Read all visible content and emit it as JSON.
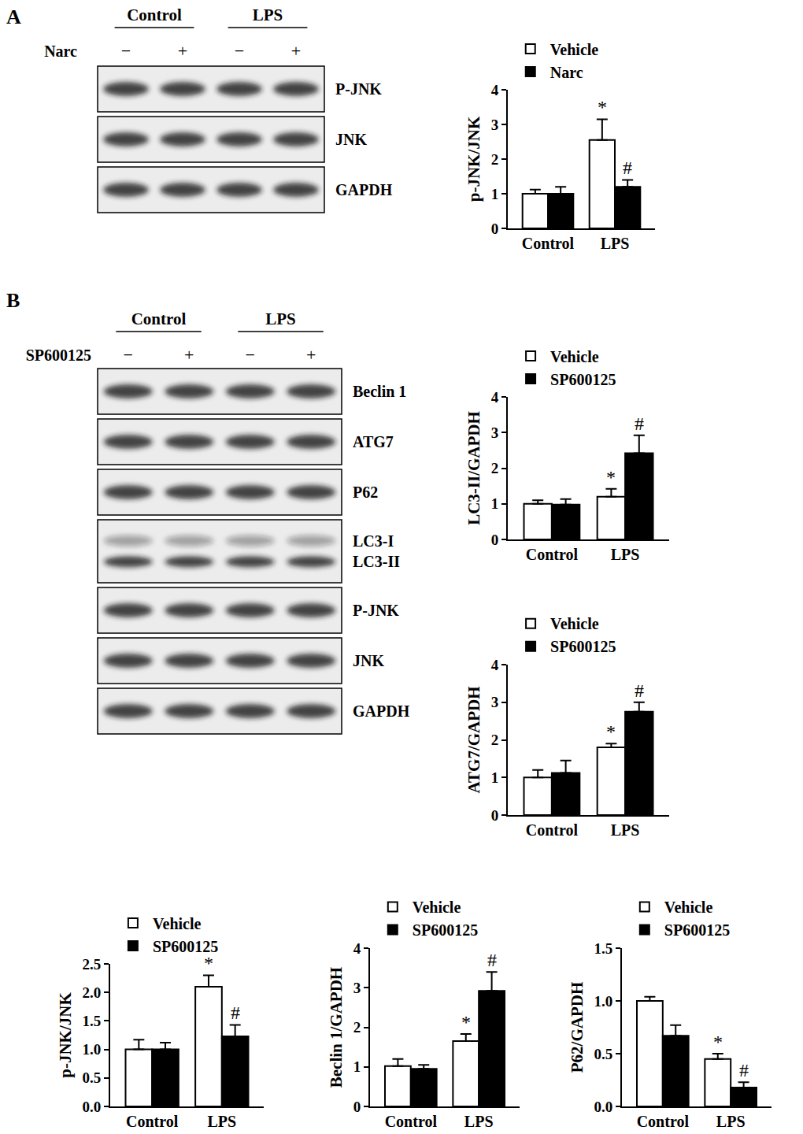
{
  "blots": [
    {
      "panel": "A",
      "groups": [
        "Control",
        "LPS"
      ],
      "treatment": "Narc",
      "lanes": [
        "−",
        "+",
        "−",
        "+"
      ],
      "rows": [
        {
          "labels": [
            "P-JNK"
          ]
        },
        {
          "labels": [
            "JNK"
          ]
        },
        {
          "labels": [
            "GAPDH"
          ]
        }
      ]
    },
    {
      "panel": "B",
      "groups": [
        "Control",
        "LPS"
      ],
      "treatment": "SP600125",
      "lanes": [
        "−",
        "+",
        "−",
        "+"
      ],
      "rows": [
        {
          "labels": [
            "Beclin 1"
          ]
        },
        {
          "labels": [
            "ATG7"
          ]
        },
        {
          "labels": [
            "P62"
          ]
        },
        {
          "labels": [
            "LC3-I",
            "LC3-II"
          ]
        },
        {
          "labels": [
            "P-JNK"
          ]
        },
        {
          "labels": [
            "JNK"
          ]
        },
        {
          "labels": [
            "GAPDH"
          ]
        }
      ]
    }
  ],
  "chart_data": [
    {
      "type": "bar",
      "ylabel": "p-JNK/JNK",
      "categories": [
        "Control",
        "LPS"
      ],
      "series": [
        {
          "name": "Vehicle",
          "color": "#ffffff",
          "values": [
            1.0,
            2.55
          ],
          "errors": [
            0.12,
            0.6
          ]
        },
        {
          "name": "Narc",
          "color": "#000000",
          "values": [
            1.0,
            1.2
          ],
          "errors": [
            0.2,
            0.2
          ]
        }
      ],
      "ylim": [
        0,
        4
      ],
      "yticks": [
        0,
        1,
        2,
        3,
        4
      ],
      "marks": [
        {
          "text": "*",
          "category": "LPS",
          "series": "Vehicle"
        },
        {
          "text": "#",
          "category": "LPS",
          "series": "Narc"
        }
      ]
    },
    {
      "type": "bar",
      "ylabel": "LC3-II/GAPDH",
      "categories": [
        "Control",
        "LPS"
      ],
      "series": [
        {
          "name": "Vehicle",
          "color": "#ffffff",
          "values": [
            1.0,
            1.2
          ],
          "errors": [
            0.1,
            0.22
          ]
        },
        {
          "name": "SP600125",
          "color": "#000000",
          "values": [
            0.98,
            2.42
          ],
          "errors": [
            0.15,
            0.5
          ]
        }
      ],
      "ylim": [
        0,
        4
      ],
      "yticks": [
        0,
        1,
        2,
        3,
        4
      ],
      "marks": [
        {
          "text": "*",
          "category": "LPS",
          "series": "Vehicle"
        },
        {
          "text": "#",
          "category": "LPS",
          "series": "SP600125"
        }
      ]
    },
    {
      "type": "bar",
      "ylabel": "ATG7/GAPDH",
      "categories": [
        "Control",
        "LPS"
      ],
      "series": [
        {
          "name": "Vehicle",
          "color": "#ffffff",
          "values": [
            1.0,
            1.8
          ],
          "errors": [
            0.2,
            0.1
          ]
        },
        {
          "name": "SP600125",
          "color": "#000000",
          "values": [
            1.12,
            2.75
          ],
          "errors": [
            0.33,
            0.25
          ]
        }
      ],
      "ylim": [
        0,
        4
      ],
      "yticks": [
        0,
        1,
        2,
        3,
        4
      ],
      "marks": [
        {
          "text": "*",
          "category": "LPS",
          "series": "Vehicle"
        },
        {
          "text": "#",
          "category": "LPS",
          "series": "SP600125"
        }
      ]
    },
    {
      "type": "bar",
      "ylabel": "p-JNK/JNK",
      "categories": [
        "Control",
        "LPS"
      ],
      "series": [
        {
          "name": "Vehicle",
          "color": "#ffffff",
          "values": [
            1.0,
            2.1
          ],
          "errors": [
            0.17,
            0.2
          ]
        },
        {
          "name": "SP600125",
          "color": "#000000",
          "values": [
            1.0,
            1.23
          ],
          "errors": [
            0.12,
            0.2
          ]
        }
      ],
      "ylim": [
        0,
        2.5
      ],
      "yticks": [
        {
          "value": 0,
          "label": "0.0"
        },
        0.5,
        {
          "value": 1,
          "label": "1.0"
        },
        1.5,
        {
          "value": 2,
          "label": "2.0"
        },
        2.5
      ],
      "marks": [
        {
          "text": "*",
          "category": "LPS",
          "series": "Vehicle"
        },
        {
          "text": "#",
          "category": "LPS",
          "series": "SP600125"
        }
      ]
    },
    {
      "type": "bar",
      "ylabel": "Beclin 1/GAPDH",
      "categories": [
        "Control",
        "LPS"
      ],
      "series": [
        {
          "name": "Vehicle",
          "color": "#ffffff",
          "values": [
            1.02,
            1.65
          ],
          "errors": [
            0.18,
            0.18
          ]
        },
        {
          "name": "SP600125",
          "color": "#000000",
          "values": [
            0.95,
            2.92
          ],
          "errors": [
            0.1,
            0.48
          ]
        }
      ],
      "ylim": [
        0,
        4
      ],
      "yticks": [
        0,
        1,
        2,
        3,
        4
      ],
      "marks": [
        {
          "text": "*",
          "category": "LPS",
          "series": "Vehicle"
        },
        {
          "text": "#",
          "category": "LPS",
          "series": "SP600125"
        }
      ]
    },
    {
      "type": "bar",
      "ylabel": "P62/GAPDH",
      "categories": [
        "Control",
        "LPS"
      ],
      "series": [
        {
          "name": "Vehicle",
          "color": "#ffffff",
          "values": [
            1.0,
            0.45
          ],
          "errors": [
            0.04,
            0.05
          ]
        },
        {
          "name": "SP600125",
          "color": "#000000",
          "values": [
            0.67,
            0.18
          ],
          "errors": [
            0.1,
            0.05
          ]
        }
      ],
      "ylim": [
        0,
        1.5
      ],
      "yticks": [
        {
          "value": 0,
          "label": "0.0"
        },
        0.5,
        {
          "value": 1,
          "label": "1.0"
        },
        1.5
      ],
      "marks": [
        {
          "text": "*",
          "category": "LPS",
          "series": "Vehicle"
        },
        {
          "text": "#",
          "category": "LPS",
          "series": "SP600125"
        }
      ]
    }
  ]
}
